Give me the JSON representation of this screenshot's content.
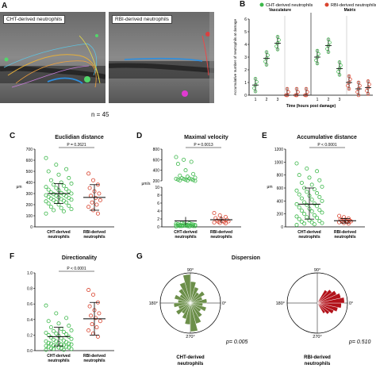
{
  "panels": {
    "A": {
      "left_tag": "CHT-derived neutrophils",
      "right_tag": "RBI-derived neutrophils",
      "n_label": "n = 45"
    },
    "B": {
      "legend": [
        "CHT-derived neutrophils",
        "RBI-derived neutrophils"
      ],
      "sections": [
        "Vasculature",
        "Matrix"
      ],
      "ylabel": "Accumulative number of neutrophils at damage",
      "xlabel": "Time (hours post damage)",
      "yticks": [
        "0",
        "1",
        "2",
        "3",
        "4",
        "5",
        "6"
      ],
      "xticks": [
        "1",
        "2",
        "3",
        "1",
        "2",
        "3"
      ],
      "colors": {
        "cht": "#3cb84a",
        "rbi": "#d9442f"
      }
    },
    "C": {
      "title": "Euclidian distance",
      "pvalue": "P = 0.2621",
      "unit": "μm",
      "yticks": [
        "0",
        "100",
        "200",
        "300",
        "400",
        "500",
        "600",
        "700"
      ],
      "xcats": [
        "CHT-derived neutrophils",
        "RBI-derived neutrophils"
      ]
    },
    "D": {
      "title": "Maximal velocity",
      "pvalue": "P = 0.0013",
      "unit": "μm/s",
      "yticks": [
        "0",
        "2",
        "4",
        "6",
        "8",
        "10",
        "200",
        "400",
        "600",
        "800"
      ],
      "xcats": [
        "CHT-derived neutrophils",
        "RBI-derived neutrophils"
      ]
    },
    "E": {
      "title": "Accumulative distance",
      "pvalue": "P < 0.0001",
      "unit": "μm",
      "yticks": [
        "0",
        "200",
        "400",
        "600",
        "800",
        "1000",
        "1200"
      ],
      "xcats": [
        "CHT-derived neutrophils",
        "RBI-derived neutrophils"
      ]
    },
    "F": {
      "title": "Directionality",
      "pvalue": "P < 0.0001",
      "yticks": [
        "0.0",
        "0.2",
        "0.4",
        "0.6",
        "0.8",
        "1.0"
      ],
      "xcats": [
        "CHT-derived neutrophils",
        "RBI-derived neutrophils"
      ]
    },
    "G": {
      "title": "Dispersion",
      "angles": [
        "90°",
        "180°",
        "270°",
        "0°"
      ],
      "left_p": "p= 0.005",
      "right_p": "p= 0.510",
      "left_label": "CHT-derived neutrophils",
      "right_label": "RBI-derived neutrophils"
    }
  },
  "chart_data": [
    {
      "type": "scatter",
      "panel": "B",
      "series": [
        {
          "name": "CHT-derived neutrophils",
          "section": "Vasculature",
          "x": [
            1,
            2,
            3
          ],
          "means": [
            0.8,
            2.9,
            4.1
          ]
        },
        {
          "name": "RBI-derived neutrophils",
          "section": "Vasculature",
          "x": [
            1,
            2,
            3
          ],
          "means": [
            0,
            0,
            0
          ]
        },
        {
          "name": "CHT-derived neutrophils",
          "section": "Matrix",
          "x": [
            1,
            2,
            3
          ],
          "means": [
            3.0,
            3.9,
            2.1
          ]
        },
        {
          "name": "RBI-derived neutrophils",
          "section": "Matrix",
          "x": [
            1,
            2,
            3
          ],
          "means": [
            1.0,
            0.5,
            0.6
          ]
        }
      ],
      "ylim": [
        0,
        6
      ]
    },
    {
      "type": "scatter",
      "panel": "C",
      "groups": [
        {
          "name": "CHT-derived neutrophils",
          "values": [
            620,
            560,
            520,
            500,
            470,
            440,
            420,
            400,
            390,
            380,
            370,
            360,
            350,
            340,
            335,
            330,
            320,
            310,
            305,
            300,
            295,
            290,
            285,
            280,
            275,
            270,
            265,
            260,
            255,
            250,
            245,
            240,
            235,
            230,
            225,
            220,
            210,
            200,
            190,
            180,
            170,
            160,
            150,
            140,
            120
          ],
          "mean": 300,
          "sd_low": 210,
          "sd_high": 390
        },
        {
          "name": "RBI-derived neutrophils",
          "values": [
            480,
            420,
            380,
            350,
            320,
            300,
            280,
            260,
            240,
            220,
            200,
            180,
            150,
            120
          ],
          "mean": 265,
          "sd_low": 150,
          "sd_high": 380
        }
      ],
      "ylim": [
        0,
        700
      ]
    },
    {
      "type": "scatter",
      "panel": "D",
      "groups": [
        {
          "name": "CHT-derived neutrophils",
          "values": [
            650,
            600,
            560,
            520,
            400,
            330,
            300,
            280,
            260,
            250,
            245,
            240,
            235,
            230,
            225,
            220,
            215,
            210,
            205,
            200,
            1,
            0.9,
            0.8,
            0.8,
            0.7,
            0.7,
            0.6,
            0.6,
            0.5,
            0.5,
            0.5,
            0.4,
            0.4,
            0.4,
            0.3,
            0.3,
            0.3,
            0.3,
            0.2,
            0.2,
            0.2,
            0.2,
            0.2,
            0.1,
            0.1
          ],
          "mean": 1.5,
          "sd_low": 0.5,
          "sd_high": 2.5
        },
        {
          "name": "RBI-derived neutrophils",
          "values": [
            3.5,
            2.9,
            2.5,
            2.2,
            2.0,
            1.8,
            1.6,
            1.5,
            1.4,
            1.3,
            1.2,
            1.1,
            1.0,
            0.9
          ],
          "mean": 1.8,
          "sd_low": 1.0,
          "sd_high": 2.6
        }
      ]
    },
    {
      "type": "scatter",
      "panel": "E",
      "groups": [
        {
          "name": "CHT-derived neutrophils",
          "values": [
            980,
            900,
            860,
            800,
            760,
            720,
            680,
            650,
            620,
            600,
            580,
            560,
            540,
            520,
            500,
            480,
            460,
            440,
            420,
            400,
            380,
            360,
            350,
            340,
            320,
            300,
            280,
            260,
            250,
            240,
            220,
            200,
            180,
            160,
            150,
            140,
            120,
            100,
            90,
            80,
            70,
            60,
            50,
            40,
            30
          ],
          "mean": 350,
          "sd_low": 120,
          "sd_high": 600
        },
        {
          "name": "RBI-derived neutrophils",
          "values": [
            170,
            150,
            130,
            120,
            110,
            100,
            95,
            90,
            85,
            80,
            75,
            70,
            60,
            50
          ],
          "mean": 95,
          "sd_low": 60,
          "sd_high": 130
        }
      ],
      "ylim": [
        0,
        1200
      ]
    },
    {
      "type": "scatter",
      "panel": "F",
      "groups": [
        {
          "name": "CHT-derived neutrophils",
          "values": [
            0.58,
            0.48,
            0.42,
            0.38,
            0.35,
            0.32,
            0.3,
            0.28,
            0.26,
            0.25,
            0.24,
            0.23,
            0.22,
            0.21,
            0.2,
            0.19,
            0.18,
            0.17,
            0.16,
            0.15,
            0.14,
            0.13,
            0.12,
            0.12,
            0.11,
            0.1,
            0.1,
            0.09,
            0.09,
            0.08,
            0.08,
            0.07,
            0.07,
            0.06,
            0.06,
            0.05,
            0.05,
            0.04,
            0.04,
            0.03,
            0.03,
            0.02,
            0.02,
            0.01,
            0.01
          ],
          "mean": 0.18,
          "sd_low": 0.06,
          "sd_high": 0.3
        },
        {
          "name": "RBI-derived neutrophils",
          "values": [
            0.78,
            0.72,
            0.62,
            0.57,
            0.52,
            0.48,
            0.45,
            0.42,
            0.38,
            0.34,
            0.3,
            0.26,
            0.22,
            0.18
          ],
          "mean": 0.41,
          "sd_low": 0.2,
          "sd_high": 0.62
        }
      ],
      "ylim": [
        0,
        1.0
      ]
    },
    {
      "type": "rose",
      "panel": "G",
      "groups": [
        {
          "name": "CHT-derived neutrophils",
          "p": 0.005
        },
        {
          "name": "RBI-derived neutrophils",
          "p": 0.51
        }
      ]
    }
  ]
}
